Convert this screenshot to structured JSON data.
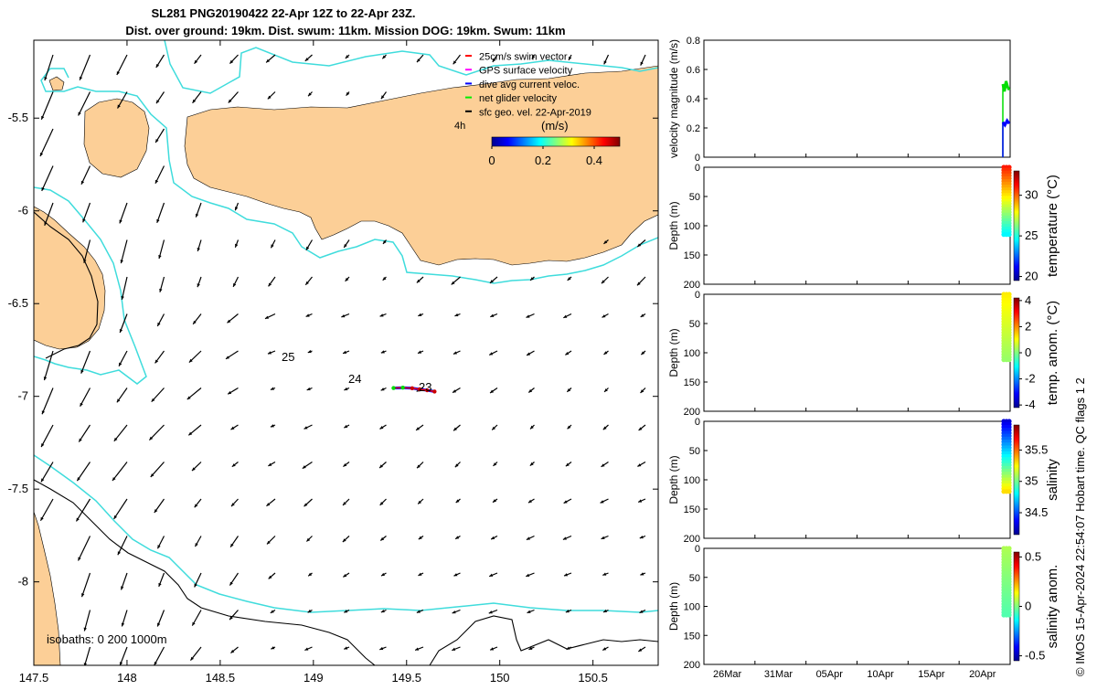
{
  "figure": {
    "title_line1": "SL281 PNG20190422 22-Apr 12Z to 22-Apr 23Z.",
    "title_line2": "Dist. over ground: 19km. Dist. swum: 11km. Mission DOG: 19km. Swum: 11km",
    "footer_credit": "© IMOS 15-Apr-2024 22:54:07 Hobart time. QC flags 1  2",
    "colors": {
      "land": "#FCCF97",
      "isobath_200": "#3FDCDC",
      "isobath_other": "#000000",
      "arrow": "#000000"
    }
  },
  "map": {
    "isobath_note": "isobaths: 0   200  1000m",
    "contour_labels": [
      "25",
      "24",
      "23"
    ],
    "time_marker": "4h",
    "legend": {
      "entries": [
        {
          "label": "25cm/s swim vector",
          "color": "#ff0000"
        },
        {
          "label": "GPS surface velocity",
          "color": "#ff00ff"
        },
        {
          "label": "dive avg current veloc.",
          "color": "#0000ff"
        },
        {
          "label": "net glider velocity",
          "color": "#00ee00"
        },
        {
          "label": "sfc geo. vel. 22-Apr-2019",
          "color": "#000000"
        }
      ],
      "colorbar_title": "(m/s)",
      "colorbar_ticks": [
        "0",
        "0.2",
        "0.4"
      ]
    }
  },
  "chart_data": [
    {
      "type": "scatter",
      "name": "map",
      "xlim": [
        147.5,
        150.85
      ],
      "ylim": [
        -8.45,
        -5.08
      ],
      "x_ticks": [
        "147.5",
        "148",
        "148.5",
        "149",
        "149.5",
        "150",
        "150.5"
      ],
      "y_ticks": [
        "-5.5",
        "-6",
        "-6.5",
        "-7",
        "-7.5",
        "-8"
      ],
      "track": [
        [
          149.43,
          -6.955
        ],
        [
          149.48,
          -6.953
        ],
        [
          149.53,
          -6.956
        ],
        [
          149.57,
          -6.962
        ],
        [
          149.61,
          -6.967
        ],
        [
          149.65,
          -6.974
        ]
      ],
      "colorbar": {
        "min": 0,
        "max": 0.5
      }
    },
    {
      "type": "line",
      "name": "velocity",
      "ylabel": "velocity magnitude (m/s)",
      "ylim": [
        0,
        0.8
      ],
      "y_ticks": [
        "0",
        "0.2",
        "0.4",
        "0.6",
        "0.8"
      ],
      "series": [
        {
          "color": "#00dd00",
          "values": [
            0.5,
            0.45,
            0.52,
            0.48,
            0.46
          ]
        },
        {
          "color": "#0000ff",
          "values": [
            0.24,
            0.22,
            0.25,
            0.23
          ]
        }
      ]
    },
    {
      "type": "scatter",
      "name": "temperature",
      "ylabel": "Depth (m)",
      "colorbar_label": "temperature (°C)",
      "ylim": [
        200,
        0
      ],
      "y_ticks": [
        "0",
        "50",
        "100",
        "150",
        "200"
      ],
      "colorbar_range": [
        19.5,
        33
      ],
      "colorbar_ticks": [
        "20",
        "25",
        "30"
      ],
      "profile": {
        "depth_max": 115,
        "value_top": 31,
        "value_bottom": 24.5
      }
    },
    {
      "type": "scatter",
      "name": "temperature-anomaly",
      "ylabel": "Depth (m)",
      "colorbar_label": "temp. anom. (°C)",
      "ylim": [
        200,
        0
      ],
      "y_ticks": [
        "0",
        "50",
        "100",
        "150",
        "200"
      ],
      "colorbar_range": [
        -4.2,
        4.2
      ],
      "colorbar_ticks": [
        "4",
        "2",
        "0",
        "-2",
        "-4"
      ],
      "profile": {
        "depth_max": 112,
        "value_top": 1.2,
        "value_bottom": 0.2
      }
    },
    {
      "type": "scatter",
      "name": "salinity",
      "ylabel": "Depth (m)",
      "colorbar_label": "salinity",
      "ylim": [
        200,
        0
      ],
      "y_ticks": [
        "0",
        "50",
        "100",
        "150",
        "200"
      ],
      "colorbar_range": [
        34.15,
        35.9
      ],
      "colorbar_ticks": [
        "35.5",
        "35",
        "34.5"
      ],
      "profile": {
        "depth_max": 120,
        "value_top": 34.3,
        "value_bottom": 35.3
      }
    },
    {
      "type": "scatter",
      "name": "salinity-anomaly",
      "ylabel": "Depth (m)",
      "colorbar_label": "salinity anom.",
      "ylim": [
        200,
        0
      ],
      "y_ticks": [
        "0",
        "50",
        "100",
        "150",
        "200"
      ],
      "x_ticks": [
        "26Mar",
        "31Mar",
        "05Apr",
        "10Apr",
        "15Apr",
        "20Apr"
      ],
      "colorbar_range": [
        -0.55,
        0.55
      ],
      "colorbar_ticks": [
        "0.5",
        "0",
        "-0.5"
      ],
      "profile": {
        "depth_max": 115,
        "value_top": 0.05,
        "value_bottom": -0.05
      }
    }
  ]
}
